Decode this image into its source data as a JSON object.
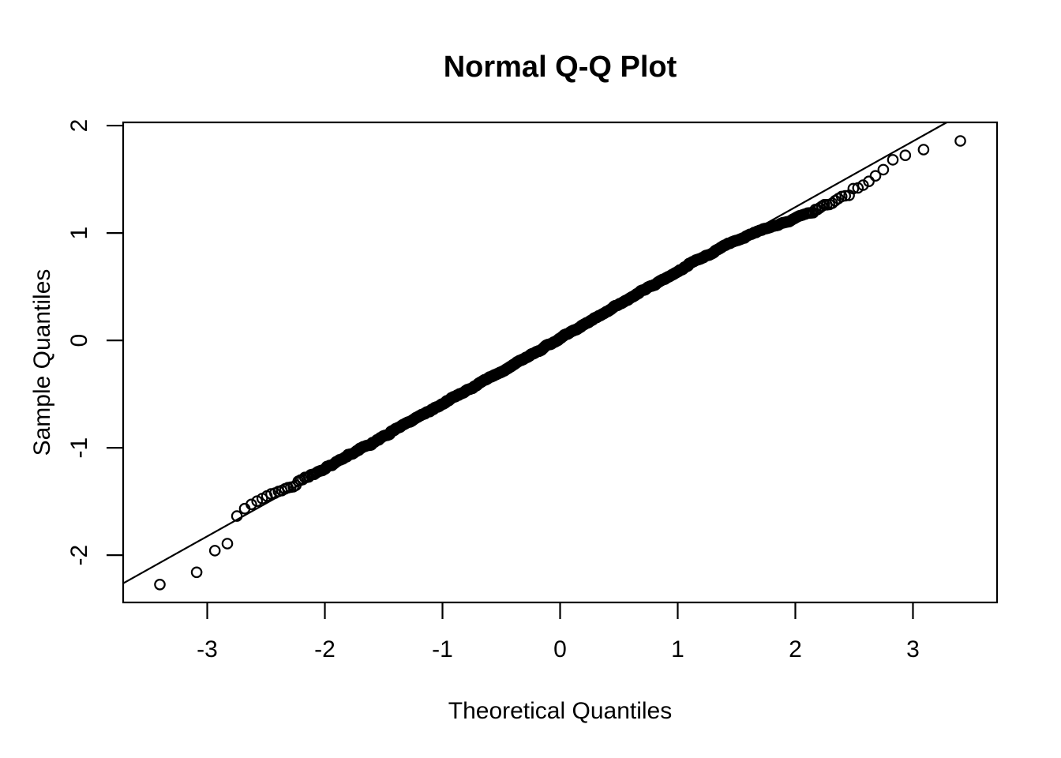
{
  "chart_data": {
    "type": "scatter",
    "title": "Normal Q-Q Plot",
    "xlabel": "Theoretical Quantiles",
    "ylabel": "Sample Quantiles",
    "x_ticks": [
      -3,
      -2,
      -1,
      0,
      1,
      2,
      3
    ],
    "y_ticks": [
      -2,
      -1,
      0,
      1,
      2
    ],
    "xlim": [
      -3.715,
      3.715
    ],
    "ylim": [
      -2.44,
      2.03
    ],
    "grid": false,
    "legend": null,
    "marker": "open-circle",
    "n_points": 1500,
    "ppoints_offset": 0.5,
    "reference_line": {
      "slope": 0.613,
      "intercept": 0.015
    },
    "qq_curve_knots": [
      [
        -3.4,
        -2.27
      ],
      [
        -3.09,
        -2.16
      ],
      [
        -2.93,
        -1.95
      ],
      [
        -2.84,
        -1.93
      ],
      [
        -2.76,
        -1.64
      ],
      [
        -2.7,
        -1.58
      ],
      [
        -2.6,
        -1.5
      ],
      [
        -2.45,
        -1.43
      ],
      [
        -2.3,
        -1.36
      ],
      [
        -2.1,
        -1.25
      ],
      [
        -1.9,
        -1.13
      ],
      [
        -1.6,
        -0.95
      ],
      [
        -1.3,
        -0.77
      ],
      [
        -1.0,
        -0.59
      ],
      [
        -0.7,
        -0.41
      ],
      [
        -0.4,
        -0.225
      ],
      [
        0.0,
        0.02
      ],
      [
        0.4,
        0.27
      ],
      [
        0.7,
        0.46
      ],
      [
        1.0,
        0.64
      ],
      [
        1.3,
        0.82
      ],
      [
        1.5,
        0.93
      ],
      [
        1.7,
        1.01
      ],
      [
        1.9,
        1.09
      ],
      [
        2.1,
        1.18
      ],
      [
        2.3,
        1.28
      ],
      [
        2.5,
        1.4
      ],
      [
        2.7,
        1.53
      ],
      [
        2.77,
        1.63
      ],
      [
        2.84,
        1.69
      ],
      [
        2.93,
        1.72
      ],
      [
        3.09,
        1.77
      ],
      [
        3.4,
        1.86
      ]
    ],
    "isolated_low_tail_points": [
      [
        -3.43,
        -2.28
      ],
      [
        -3.11,
        -2.16
      ],
      [
        -2.96,
        -1.94
      ],
      [
        -2.87,
        -1.94
      ],
      [
        -2.77,
        -1.64
      ],
      [
        -2.72,
        -1.58
      ]
    ],
    "isolated_high_tail_points": [
      [
        2.78,
        1.64
      ],
      [
        2.86,
        1.7
      ],
      [
        2.97,
        1.72
      ],
      [
        3.12,
        1.77
      ],
      [
        3.44,
        1.86
      ]
    ],
    "colors": {
      "foreground": "#000000",
      "background": "#ffffff"
    }
  }
}
